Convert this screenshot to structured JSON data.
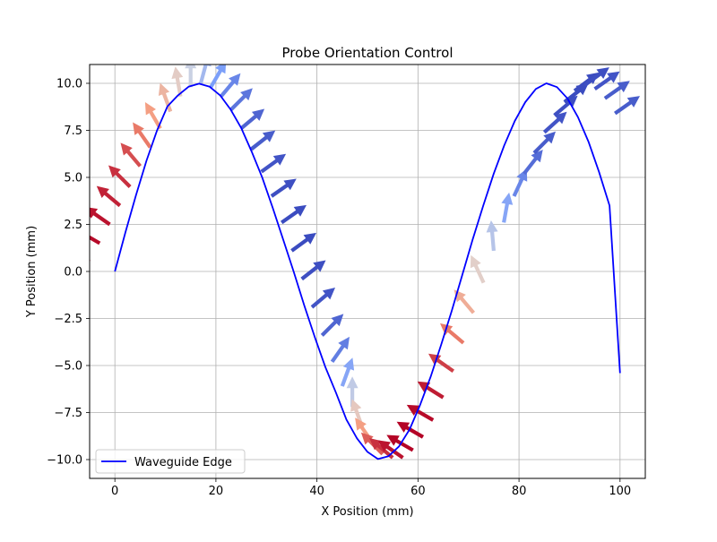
{
  "chart_data": {
    "type": "line",
    "title": "Probe Orientation Control",
    "xlabel": "X Position (mm)",
    "ylabel": "Y Position (mm)",
    "xlim": [
      -5,
      105
    ],
    "ylim": [
      -11,
      11
    ],
    "grid": true,
    "legend": {
      "placement": "lower-left",
      "entries": [
        "Waveguide Edge"
      ]
    },
    "x_ticks": [
      0,
      20,
      40,
      60,
      80,
      100
    ],
    "x_tick_labels": [
      "0",
      "20",
      "40",
      "60",
      "80",
      "100"
    ],
    "y_ticks": [
      10,
      7.5,
      5,
      2.5,
      0,
      -2.5,
      -5,
      -7.5,
      -10
    ],
    "y_tick_labels": [
      "10.0",
      "7.5",
      "5.0",
      "2.5",
      "0.0",
      "−2.5",
      "−5.0",
      "−7.5",
      "−10.0"
    ],
    "series": [
      {
        "name": "Waveguide Edge",
        "color": "#0000ff",
        "x": [
          0,
          2.08,
          4.17,
          6.25,
          8.33,
          10.42,
          12.5,
          14.58,
          16.67,
          18.75,
          20.83,
          22.92,
          25,
          27.08,
          29.17,
          31.25,
          33.33,
          35.42,
          37.5,
          39.58,
          41.67,
          43.75,
          45.83,
          47.92,
          50,
          52.08,
          54.17,
          56.25,
          58.33,
          60.42,
          62.5,
          64.58,
          66.67,
          68.75,
          70.83,
          72.92,
          75,
          77.08,
          79.17,
          81.25,
          83.33,
          85.42,
          87.5,
          89.58,
          91.67,
          93.75,
          95.83,
          97.92,
          100
        ],
        "y": [
          0,
          2.07,
          4.05,
          5.88,
          7.48,
          8.78,
          9.36,
          9.82,
          9.98,
          9.82,
          9.36,
          8.6,
          7.63,
          6.37,
          4.99,
          3.38,
          1.69,
          -0.03,
          -1.81,
          -3.5,
          -5.08,
          -6.44,
          -7.87,
          -8.87,
          -9.59,
          -9.97,
          -9.82,
          -9.3,
          -8.4,
          -7.1,
          -5.6,
          -3.9,
          -2.1,
          -0.2,
          1.7,
          3.5,
          5.2,
          6.7,
          8.0,
          9.0,
          9.7,
          10.0,
          9.8,
          9.2,
          8.2,
          6.9,
          5.3,
          3.5,
          -5.4
        ]
      }
    ],
    "quiver": {
      "colormap": "coolwarm",
      "note": "arrow angle in degrees measured counter-clockwise from +x; color from -1 (blue) to 1 (red)",
      "x": [
        -5,
        -3,
        -1,
        1,
        3,
        5,
        7,
        9,
        11,
        13,
        15,
        17,
        19,
        21,
        23,
        25,
        27,
        29,
        31,
        33,
        35,
        37,
        39,
        41,
        43,
        45,
        47,
        49,
        51,
        53,
        55,
        57,
        59,
        61,
        63,
        65,
        67,
        69,
        71,
        73,
        75,
        77,
        79,
        81,
        83,
        85,
        87,
        89,
        91,
        93,
        95,
        97,
        99
      ],
      "y": [
        0.5,
        1.5,
        2.5,
        3.5,
        4.5,
        5.6,
        6.6,
        7.6,
        8.5,
        9.3,
        9.8,
        10.0,
        9.8,
        9.3,
        8.6,
        7.6,
        6.5,
        5.3,
        4.0,
        2.6,
        1.1,
        -0.4,
        -1.9,
        -3.4,
        -4.8,
        -6.1,
        -7.2,
        -8.3,
        -9.1,
        -9.7,
        -9.9,
        -9.9,
        -9.5,
        -8.8,
        -7.9,
        -6.7,
        -5.3,
        -3.8,
        -2.2,
        -0.6,
        1.1,
        2.6,
        4.0,
        5.2,
        6.3,
        7.4,
        8.3,
        9.0,
        9.6,
        9.9,
        9.7,
        9.2,
        8.4
      ],
      "angle": [
        155,
        150,
        145,
        140,
        135,
        130,
        125,
        120,
        110,
        100,
        90,
        75,
        60,
        50,
        45,
        40,
        38,
        36,
        35,
        35,
        36,
        38,
        40,
        45,
        55,
        70,
        90,
        110,
        125,
        135,
        140,
        145,
        150,
        150,
        150,
        148,
        145,
        140,
        130,
        115,
        95,
        80,
        65,
        52,
        45,
        42,
        40,
        38,
        37,
        36,
        35,
        35,
        35
      ],
      "color_value": [
        1.0,
        0.98,
        0.95,
        0.9,
        0.85,
        0.75,
        0.6,
        0.45,
        0.3,
        0.12,
        -0.1,
        -0.3,
        -0.5,
        -0.65,
        -0.75,
        -0.85,
        -0.9,
        -0.95,
        -0.98,
        -1.0,
        -1.0,
        -0.98,
        -0.95,
        -0.85,
        -0.7,
        -0.45,
        -0.15,
        0.15,
        0.45,
        0.7,
        0.85,
        0.95,
        1.0,
        1.0,
        0.98,
        0.92,
        0.8,
        0.6,
        0.35,
        0.1,
        -0.2,
        -0.45,
        -0.65,
        -0.8,
        -0.9,
        -0.95,
        -0.98,
        -1.0,
        -1.0,
        -0.98,
        -0.95,
        -0.9,
        -0.9
      ]
    }
  }
}
